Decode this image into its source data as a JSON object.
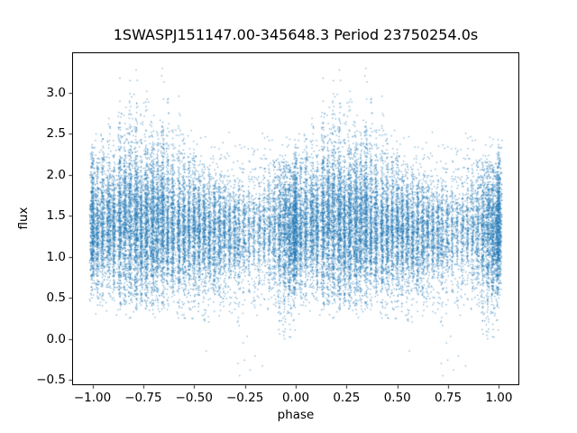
{
  "chart_data": {
    "type": "scatter",
    "title": "1SWASPJ151147.00-345648.3 Period 23750254.0s",
    "xlabel": "phase",
    "ylabel": "flux",
    "xlim": [
      -1.1,
      1.1
    ],
    "ylim": [
      -0.568,
      3.5
    ],
    "grid": false,
    "legend": null,
    "x_ticks": [
      -1.0,
      -0.75,
      -0.5,
      -0.25,
      0.0,
      0.25,
      0.5,
      0.75,
      1.0
    ],
    "x_tick_labels": [
      "−1.00",
      "−0.75",
      "−0.50",
      "−0.25",
      "0.00",
      "0.25",
      "0.50",
      "0.75",
      "1.00"
    ],
    "y_ticks": [
      3.0,
      2.5,
      2.0,
      1.5,
      1.0,
      0.5,
      0.0,
      -0.5
    ],
    "y_tick_labels": [
      "3.0",
      "2.5",
      "2.0",
      "1.5",
      "1.0",
      "0.5",
      "0.0",
      "−0.5"
    ],
    "marker_color_rgb": [
      31,
      119,
      180
    ],
    "marker_alpha": 0.6,
    "marker_size_px": 1.3,
    "axis_color": "#000000",
    "seed": 42,
    "fold_offsets": [
      -1,
      0,
      1
    ],
    "clip_x": [
      -1.015,
      1.015
    ],
    "heavy_tail_prob": 0.22,
    "heavy_tail_scale": 2.0,
    "cluster_fields": [
      "phase",
      "n_points",
      "mean_flux",
      "std_flux",
      "min_flux",
      "max_flux",
      "phase_jitter_std"
    ],
    "clusters": [
      [
        0.0,
        550,
        1.35,
        0.4,
        0.45,
        2.4,
        0.006
      ],
      [
        0.025,
        260,
        1.32,
        0.34,
        0.5,
        2.3,
        0.004
      ],
      [
        0.05,
        320,
        1.36,
        0.38,
        0.45,
        2.55,
        0.005
      ],
      [
        0.08,
        360,
        1.4,
        0.4,
        0.5,
        2.7,
        0.006
      ],
      [
        0.105,
        280,
        1.35,
        0.36,
        0.45,
        2.4,
        0.004
      ],
      [
        0.135,
        420,
        1.45,
        0.5,
        0.4,
        3.25,
        0.005
      ],
      [
        0.16,
        380,
        1.42,
        0.46,
        0.4,
        2.95,
        0.005
      ],
      [
        0.185,
        450,
        1.48,
        0.5,
        0.4,
        3.2,
        0.006
      ],
      [
        0.215,
        500,
        1.45,
        0.5,
        0.35,
        3.3,
        0.006
      ],
      [
        0.24,
        340,
        1.38,
        0.42,
        0.4,
        2.8,
        0.004
      ],
      [
        0.265,
        480,
        1.44,
        0.46,
        0.35,
        3.05,
        0.006
      ],
      [
        0.295,
        520,
        1.4,
        0.44,
        0.35,
        2.75,
        0.007
      ],
      [
        0.32,
        340,
        1.36,
        0.4,
        0.4,
        2.55,
        0.005
      ],
      [
        0.345,
        460,
        1.42,
        0.48,
        0.3,
        3.3,
        0.006
      ],
      [
        0.37,
        300,
        1.36,
        0.42,
        0.35,
        2.95,
        0.004
      ],
      [
        0.395,
        340,
        1.36,
        0.38,
        0.4,
        2.55,
        0.005
      ],
      [
        0.425,
        300,
        1.34,
        0.4,
        0.3,
        3.0,
        0.004
      ],
      [
        0.45,
        320,
        1.36,
        0.4,
        0.25,
        2.6,
        0.005
      ],
      [
        0.475,
        260,
        1.32,
        0.36,
        0.3,
        2.6,
        0.004
      ],
      [
        0.5,
        300,
        1.35,
        0.38,
        0.2,
        2.45,
        0.005
      ],
      [
        0.525,
        260,
        1.32,
        0.34,
        0.3,
        2.2,
        0.004
      ],
      [
        0.55,
        280,
        1.3,
        0.35,
        0.15,
        2.25,
        0.005
      ],
      [
        0.575,
        220,
        1.28,
        0.31,
        0.2,
        2.05,
        0.004
      ],
      [
        0.6,
        230,
        1.3,
        0.31,
        0.3,
        2.05,
        0.004
      ],
      [
        0.625,
        240,
        1.3,
        0.32,
        0.3,
        2.05,
        0.005
      ],
      [
        0.65,
        200,
        1.3,
        0.3,
        0.35,
        2.0,
        0.004
      ],
      [
        0.675,
        180,
        1.27,
        0.3,
        0.3,
        1.95,
        0.004
      ],
      [
        0.7,
        160,
        1.28,
        0.3,
        0.3,
        2.0,
        0.004
      ],
      [
        0.72,
        150,
        1.26,
        0.33,
        0.1,
        2.0,
        0.004
      ],
      [
        0.745,
        120,
        1.28,
        0.3,
        0.2,
        1.9,
        0.004
      ],
      [
        0.77,
        100,
        1.3,
        0.28,
        0.4,
        1.9,
        0.003
      ],
      [
        0.795,
        90,
        1.3,
        0.29,
        0.35,
        2.0,
        0.003
      ],
      [
        0.82,
        110,
        1.31,
        0.3,
        0.4,
        2.0,
        0.004
      ],
      [
        0.845,
        100,
        1.34,
        0.31,
        0.4,
        2.1,
        0.003
      ],
      [
        0.87,
        130,
        1.35,
        0.34,
        0.3,
        2.2,
        0.004
      ],
      [
        0.895,
        180,
        1.34,
        0.38,
        0.2,
        2.2,
        0.005
      ],
      [
        0.92,
        280,
        1.3,
        0.43,
        0.05,
        2.2,
        0.005
      ],
      [
        0.945,
        360,
        1.28,
        0.46,
        0.0,
        2.25,
        0.006
      ],
      [
        0.97,
        400,
        1.28,
        0.44,
        0.0,
        2.2,
        0.006
      ],
      [
        0.99,
        330,
        1.3,
        0.4,
        0.1,
        2.15,
        0.005
      ]
    ],
    "background": {
      "n": 2600,
      "mean": 1.35,
      "std": 0.4,
      "lo": 0.25,
      "hi": 2.55
    },
    "outlier_fields": [
      "phase",
      "flux"
    ],
    "outliers": [
      [
        0.716,
        -0.3
      ],
      [
        0.724,
        -0.45
      ],
      [
        0.748,
        -0.26
      ],
      [
        0.776,
        -0.38
      ],
      [
        0.8,
        -0.21
      ],
      [
        0.836,
        -0.33
      ],
      [
        0.742,
        -0.05
      ],
      [
        0.762,
        0.03
      ],
      [
        0.56,
        -0.15
      ],
      [
        0.215,
        3.28
      ],
      [
        0.345,
        3.3
      ],
      [
        0.135,
        3.18
      ],
      [
        0.185,
        3.15
      ],
      [
        0.267,
        3.02
      ],
      [
        0.37,
        2.92
      ],
      [
        0.425,
        2.96
      ]
    ]
  }
}
